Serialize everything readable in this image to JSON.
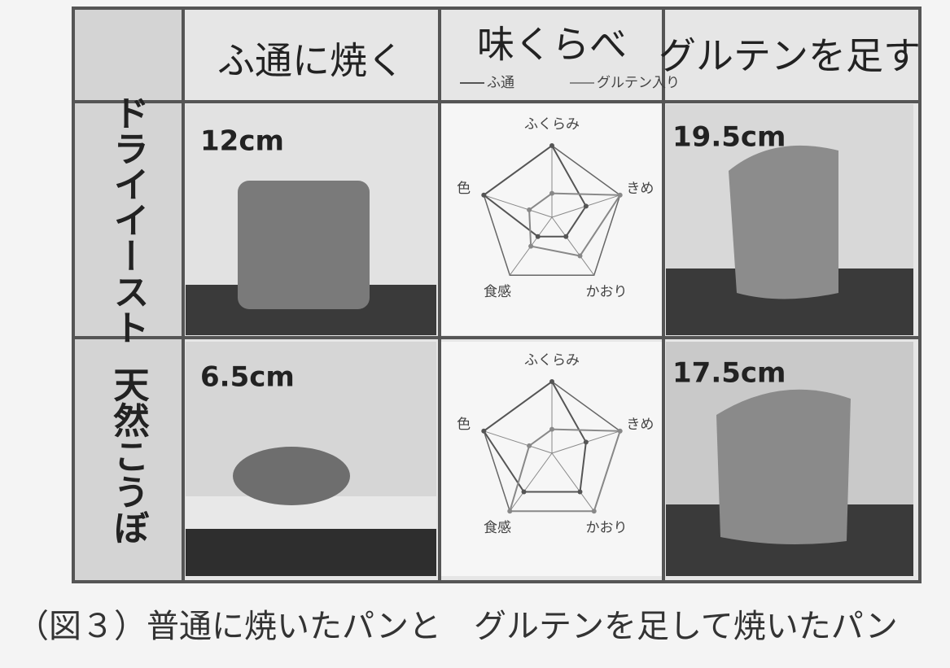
{
  "headers": [
    "ふ通に焼く",
    "味くらべ",
    "グルテンを足す"
  ],
  "legend": [
    "ふ通",
    "グルテン入り"
  ],
  "rows": [
    {
      "label": "ドライイースト",
      "left_height": "12cm",
      "right_height": "19.5cm",
      "radar": {
        "axes": [
          "ふくらみ",
          "きめ",
          "かおり",
          "食感",
          "色"
        ],
        "rlim": [
          0,
          3
        ],
        "series": [
          {
            "color": "#555555",
            "values": [
              3,
              1.5,
              1,
              1,
              3
            ]
          },
          {
            "color": "#888888",
            "values": [
              1,
              3,
              2,
              1.5,
              1
            ]
          }
        ]
      }
    },
    {
      "label": "天然こうぼ",
      "left_height": "6.5cm",
      "right_height": "17.5cm",
      "radar": {
        "axes": [
          "ふくらみ",
          "きめ",
          "かおり",
          "食感",
          "色"
        ],
        "rlim": [
          0,
          3
        ],
        "series": [
          {
            "color": "#555555",
            "values": [
              3,
              1.5,
              2,
              2,
              3
            ]
          },
          {
            "color": "#888888",
            "values": [
              1,
              3,
              3,
              3,
              1
            ]
          }
        ]
      }
    }
  ],
  "caption": "（図３）普通に焼いたパンと　グルテンを足して焼いたパン"
}
